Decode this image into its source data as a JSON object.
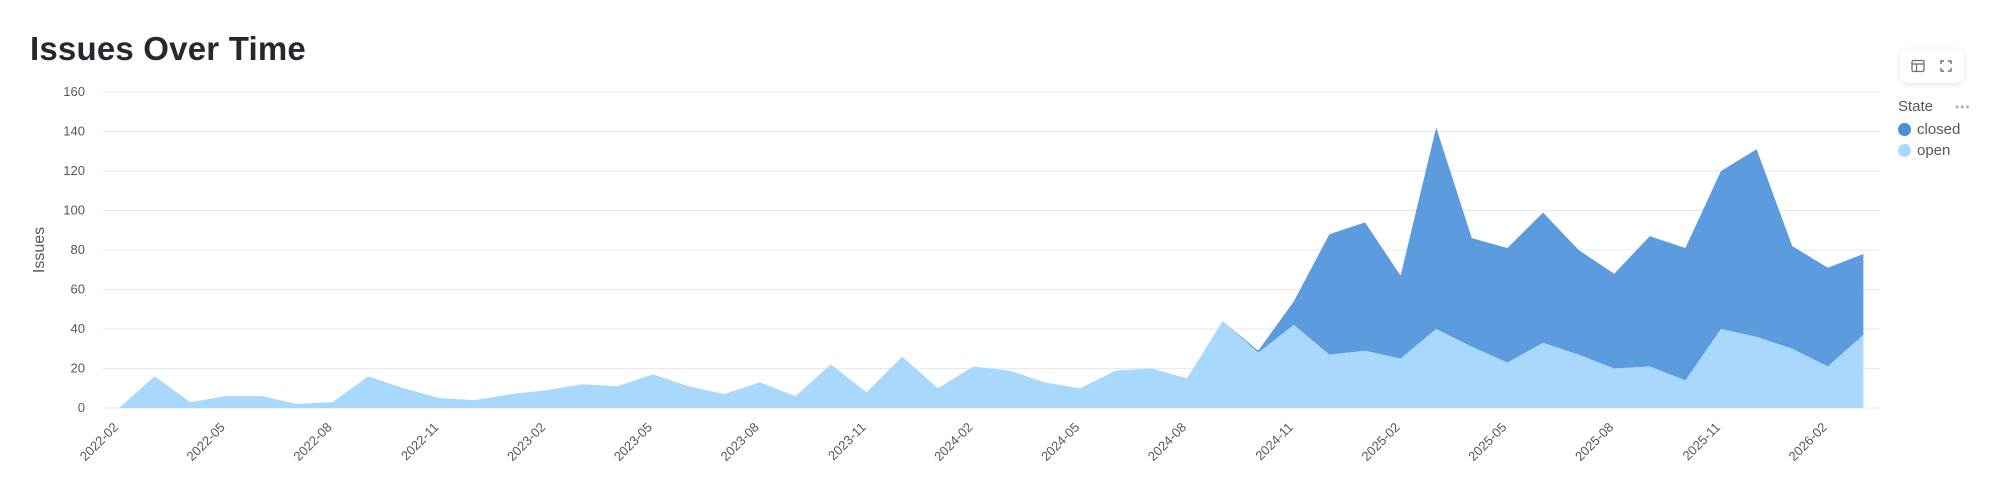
{
  "page": {
    "title": "Issues Over Time"
  },
  "toolbar": {
    "icons": [
      "table-icon",
      "fullscreen-icon"
    ]
  },
  "legend": {
    "title": "State",
    "items": [
      {
        "label": "closed",
        "color": "#4a90d9"
      },
      {
        "label": "open",
        "color": "#a8d8fb"
      }
    ]
  },
  "chart_data": {
    "type": "area",
    "stacked": true,
    "title": "Issues Over Time",
    "xlabel": "",
    "ylabel": "Issues",
    "ylim": [
      0,
      160
    ],
    "yticks": [
      0,
      20,
      40,
      60,
      80,
      100,
      120,
      140,
      160
    ],
    "grid": true,
    "legend_position": "right",
    "x": [
      "2022-02",
      "2022-03",
      "2022-04",
      "2022-05",
      "2022-06",
      "2022-07",
      "2022-08",
      "2022-09",
      "2022-10",
      "2022-11",
      "2022-12",
      "2023-01",
      "2023-02",
      "2023-03",
      "2023-04",
      "2023-05",
      "2023-06",
      "2023-07",
      "2023-08",
      "2023-09",
      "2023-10",
      "2023-11",
      "2023-12",
      "2024-01",
      "2024-02",
      "2024-03",
      "2024-04",
      "2024-05",
      "2024-06",
      "2024-07",
      "2024-08",
      "2024-09",
      "2024-10",
      "2024-11",
      "2024-12",
      "2025-01",
      "2025-02",
      "2025-03",
      "2025-04",
      "2025-05",
      "2025-06",
      "2025-07",
      "2025-08",
      "2025-09",
      "2025-10",
      "2025-11",
      "2025-12",
      "2026-01",
      "2026-02",
      "2026-03"
    ],
    "xtick_labels": [
      "2022-02",
      "2022-05",
      "2022-08",
      "2022-11",
      "2023-02",
      "2023-05",
      "2023-08",
      "2023-11",
      "2024-02",
      "2024-05",
      "2024-08",
      "2024-11",
      "2025-02",
      "2025-05",
      "2025-08",
      "2025-11",
      "2026-02"
    ],
    "series": [
      {
        "name": "open",
        "color": "#a8d8fb",
        "values": [
          0,
          16,
          3,
          6,
          6,
          2,
          3,
          16,
          10,
          5,
          4,
          7,
          9,
          12,
          11,
          17,
          11,
          7,
          13,
          6,
          22,
          8,
          26,
          10,
          21,
          19,
          13,
          10,
          19,
          20,
          15,
          44,
          28,
          42,
          27,
          29,
          25,
          40,
          31,
          23,
          33,
          27,
          20,
          21,
          14,
          40,
          36,
          30,
          21,
          37
        ]
      },
      {
        "name": "closed",
        "color": "#4a90d9",
        "values": [
          0,
          0,
          0,
          0,
          0,
          0,
          0,
          0,
          0,
          0,
          0,
          0,
          0,
          0,
          0,
          0,
          0,
          0,
          0,
          0,
          0,
          0,
          0,
          0,
          0,
          0,
          0,
          0,
          0,
          0,
          0,
          0,
          1,
          12,
          61,
          65,
          42,
          102,
          55,
          58,
          66,
          53,
          48,
          66,
          67,
          80,
          95,
          52,
          50,
          41
        ]
      }
    ]
  }
}
